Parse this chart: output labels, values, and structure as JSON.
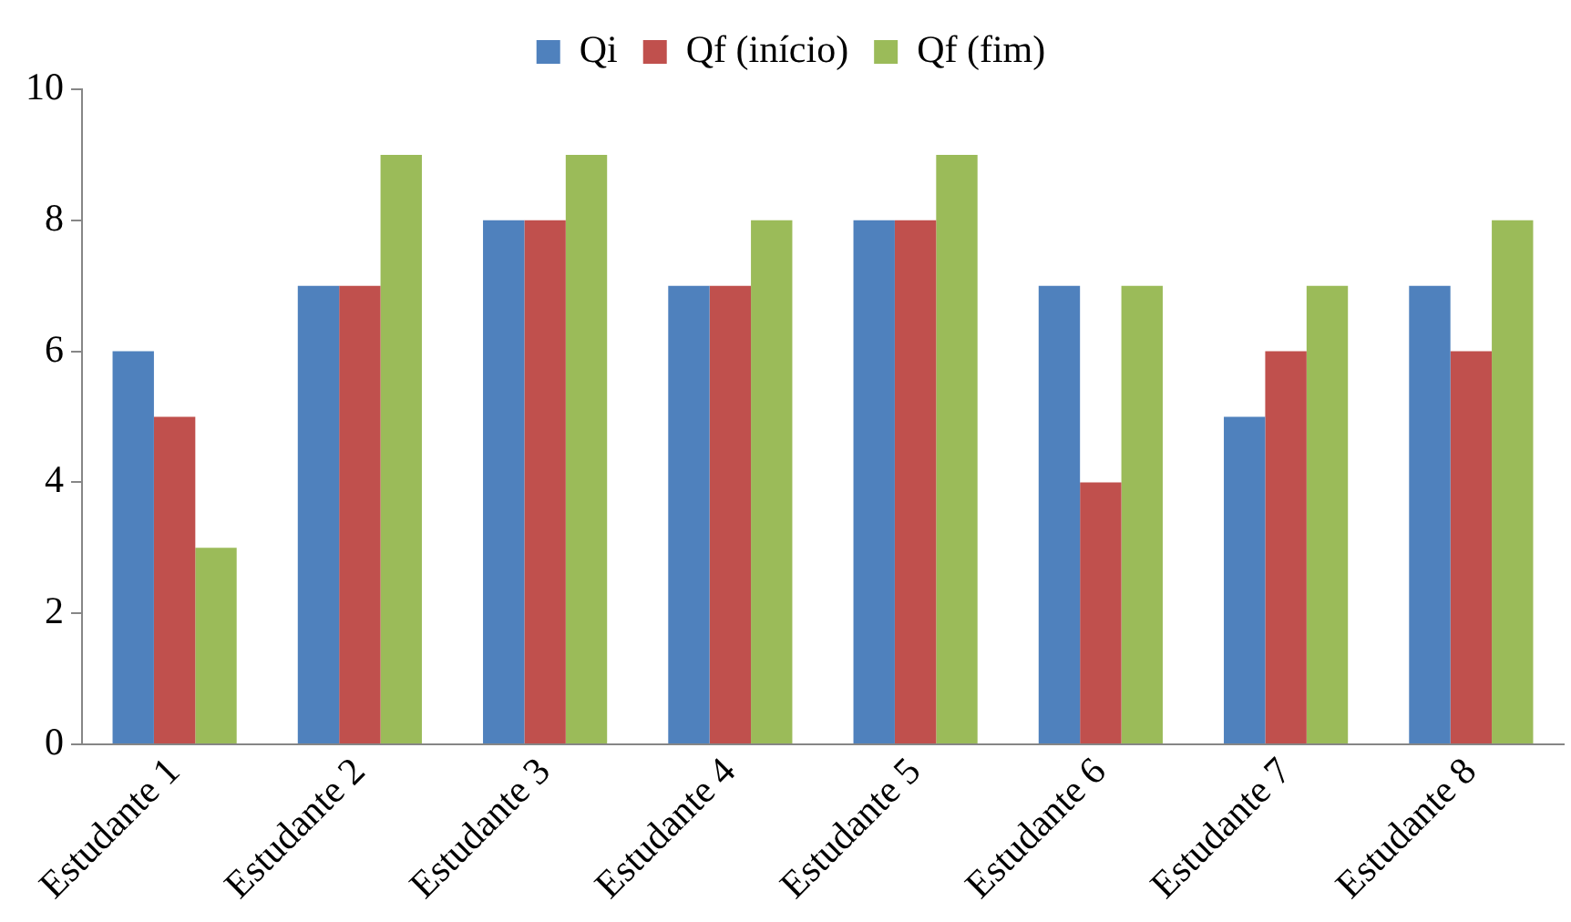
{
  "chart_data": {
    "type": "bar",
    "categories": [
      "Estudante 1",
      "Estudante 2",
      "Estudante 3",
      "Estudante 4",
      "Estudante 5",
      "Estudante 6",
      "Estudante 7",
      "Estudante 8"
    ],
    "series": [
      {
        "name": "Qi",
        "color": "#4f81bd",
        "values": [
          6,
          7,
          8,
          7,
          8,
          7,
          5,
          7
        ]
      },
      {
        "name": "Qf (início)",
        "color": "#c0504d",
        "values": [
          5,
          7,
          8,
          7,
          8,
          4,
          6,
          6
        ]
      },
      {
        "name": "Qf (fim)",
        "color": "#9bbb59",
        "values": [
          3,
          9,
          9,
          8,
          9,
          7,
          7,
          8
        ]
      }
    ],
    "ylim": [
      0,
      10
    ],
    "yticks": [
      0,
      2,
      4,
      6,
      8,
      10
    ],
    "grid": false,
    "legend": "top"
  }
}
